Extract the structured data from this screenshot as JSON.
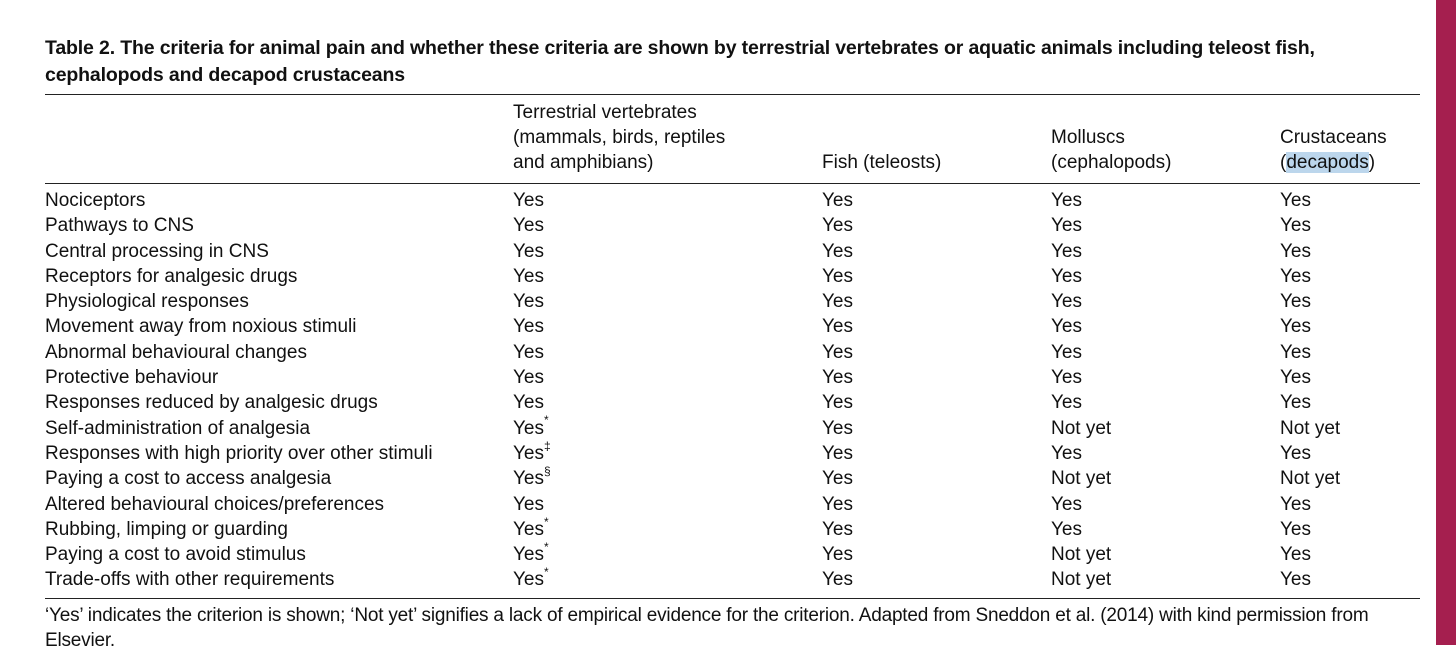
{
  "caption": "Table 2. The criteria for animal pain and whether these criteria are shown by terrestrial vertebrates or aquatic animals including teleost fish, cephalopods and decapod crustaceans",
  "header": {
    "col1": [
      "Terrestrial vertebrates",
      "(mammals, birds, reptiles",
      "and amphibians)"
    ],
    "col2": [
      "Fish (teleosts)"
    ],
    "col3": [
      "Molluscs",
      "(cephalopods)"
    ],
    "col4_line1": "Crustaceans",
    "col4_line2_open": "(",
    "col4_line2_highlight": "decapods",
    "col4_line2_close": ")"
  },
  "rows": [
    {
      "criterion": "Nociceptors",
      "tv": "Yes",
      "tv_mark": "",
      "fish": "Yes",
      "mol": "Yes",
      "cru": "Yes"
    },
    {
      "criterion": "Pathways to CNS",
      "tv": "Yes",
      "tv_mark": "",
      "fish": "Yes",
      "mol": "Yes",
      "cru": "Yes"
    },
    {
      "criterion": "Central processing in CNS",
      "tv": "Yes",
      "tv_mark": "",
      "fish": "Yes",
      "mol": "Yes",
      "cru": "Yes"
    },
    {
      "criterion": "Receptors for analgesic drugs",
      "tv": "Yes",
      "tv_mark": "",
      "fish": "Yes",
      "mol": "Yes",
      "cru": "Yes"
    },
    {
      "criterion": "Physiological responses",
      "tv": "Yes",
      "tv_mark": "",
      "fish": "Yes",
      "mol": "Yes",
      "cru": "Yes"
    },
    {
      "criterion": "Movement away from noxious stimuli",
      "tv": "Yes",
      "tv_mark": "",
      "fish": "Yes",
      "mol": "Yes",
      "cru": "Yes"
    },
    {
      "criterion": "Abnormal behavioural changes",
      "tv": "Yes",
      "tv_mark": "",
      "fish": "Yes",
      "mol": "Yes",
      "cru": "Yes"
    },
    {
      "criterion": "Protective behaviour",
      "tv": "Yes",
      "tv_mark": "",
      "fish": "Yes",
      "mol": "Yes",
      "cru": "Yes"
    },
    {
      "criterion": "Responses reduced by analgesic drugs",
      "tv": "Yes",
      "tv_mark": "",
      "fish": "Yes",
      "mol": "Yes",
      "cru": "Yes"
    },
    {
      "criterion": "Self-administration of analgesia",
      "tv": "Yes",
      "tv_mark": "*",
      "fish": "Yes",
      "mol": "Not yet",
      "cru": "Not yet"
    },
    {
      "criterion": "Responses with high priority over other stimuli",
      "tv": "Yes",
      "tv_mark": "‡",
      "fish": "Yes",
      "mol": "Yes",
      "cru": "Yes"
    },
    {
      "criterion": "Paying a cost to access analgesia",
      "tv": "Yes",
      "tv_mark": "§",
      "fish": "Yes",
      "mol": "Not yet",
      "cru": "Not yet"
    },
    {
      "criterion": "Altered behavioural choices/preferences",
      "tv": "Yes",
      "tv_mark": "",
      "fish": "Yes",
      "mol": "Yes",
      "cru": "Yes"
    },
    {
      "criterion": "Rubbing, limping or guarding",
      "tv": "Yes",
      "tv_mark": "*",
      "fish": "Yes",
      "mol": "Yes",
      "cru": "Yes"
    },
    {
      "criterion": "Paying a cost to avoid stimulus",
      "tv": "Yes",
      "tv_mark": "*",
      "fish": "Yes",
      "mol": "Not yet",
      "cru": "Yes"
    },
    {
      "criterion": "Trade-offs with other requirements",
      "tv": "Yes",
      "tv_mark": "*",
      "fish": "Yes",
      "mol": "Not yet",
      "cru": "Yes"
    }
  ],
  "footnote": "‘Yes’ indicates the criterion is shown; ‘Not yet’ signifies a lack of empirical evidence for the criterion. Adapted from Sneddon et al. (2014) with kind permission from Elsevier.",
  "colors": {
    "side_bar": "#a51f4f",
    "highlight": "#bcd6ec"
  }
}
